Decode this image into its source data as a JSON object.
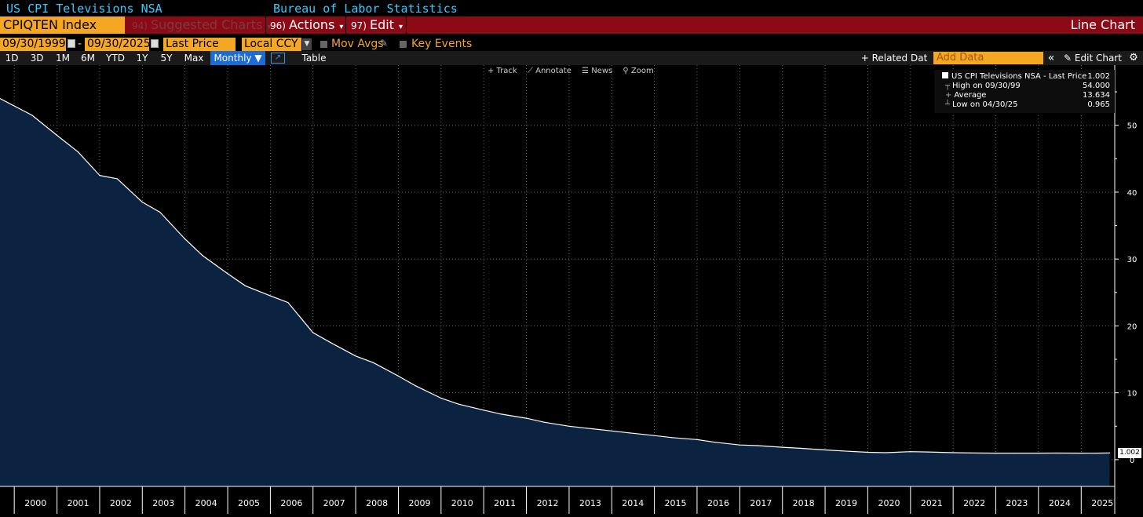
{
  "header": {
    "title": "US CPI Televisions NSA",
    "source": "Bureau of Labor Statistics"
  },
  "toolbar": {
    "ticker": "CPIQTEN Index",
    "suggested_num": "94)",
    "suggested": "Suggested Charts",
    "actions_num": "96)",
    "actions": "Actions",
    "edit_num": "97)",
    "edit": "Edit",
    "chart_type": "Line Chart"
  },
  "options": {
    "start_date": "09/30/1999",
    "dash": "-",
    "end_date": "09/30/2025",
    "price_field": "Last Price",
    "currency": "Local CCY",
    "mov_avgs": "Mov Avgs",
    "key_events": "Key Events"
  },
  "ranges": {
    "items": [
      "1D",
      "3D",
      "1M",
      "6M",
      "YTD",
      "1Y",
      "5Y",
      "Max"
    ],
    "frequency": "Monthly ▼",
    "table": "Table",
    "related": "+ Related Dat",
    "add_data_placeholder": "Add Data",
    "collapse": "«",
    "edit_chart": "✎ Edit Chart",
    "settings": "⚙"
  },
  "chart_tools": {
    "track": "+ Track",
    "annotate": "⟋ Annotate",
    "news": "☰ News",
    "zoom": "⚲ Zoom"
  },
  "legend": {
    "series": "US CPI Televisions NSA - Last Price",
    "series_value": "1.002",
    "high_label": "High on 09/30/99",
    "high_value": "54.000",
    "avg_label": "Average",
    "avg_value": "13.634",
    "low_label": "Low on 04/30/25",
    "low_value": "0.965"
  },
  "last_value_tag": "1.002",
  "colors": {
    "accent": "#f5a623",
    "bar_red": "#8b0a16",
    "title_cyan": "#33ccff",
    "area_fill": "#0b2340",
    "line": "#ffffff",
    "active_blue": "#1c6cd6"
  },
  "chart_data": {
    "type": "area",
    "x": [
      "1999-09",
      "2000-06",
      "2001-01",
      "2001-07",
      "2002-01",
      "2002-06",
      "2003-01",
      "2003-06",
      "2004-01",
      "2004-06",
      "2005-01",
      "2005-06",
      "2006-01",
      "2006-06",
      "2007-01",
      "2007-06",
      "2008-01",
      "2008-06",
      "2009-01",
      "2009-06",
      "2010-01",
      "2010-06",
      "2011-01",
      "2011-06",
      "2012-01",
      "2012-06",
      "2013-01",
      "2013-06",
      "2014-01",
      "2014-06",
      "2015-01",
      "2015-06",
      "2016-01",
      "2016-06",
      "2017-01",
      "2017-06",
      "2018-01",
      "2018-06",
      "2019-01",
      "2019-06",
      "2020-01",
      "2020-06",
      "2021-01",
      "2021-06",
      "2022-01",
      "2022-06",
      "2023-01",
      "2023-06",
      "2024-01",
      "2024-06",
      "2025-01",
      "2025-04",
      "2025-09"
    ],
    "series": [
      {
        "name": "US CPI Televisions NSA - Last Price",
        "values": [
          54.0,
          51.5,
          48.5,
          46.0,
          42.5,
          42.0,
          38.5,
          37.0,
          33.0,
          30.5,
          27.8,
          26.0,
          24.5,
          23.5,
          19.0,
          17.5,
          15.5,
          14.5,
          12.5,
          11.0,
          9.2,
          8.3,
          7.4,
          6.8,
          6.2,
          5.6,
          5.0,
          4.7,
          4.3,
          4.0,
          3.6,
          3.3,
          3.0,
          2.6,
          2.2,
          2.1,
          1.85,
          1.7,
          1.45,
          1.3,
          1.1,
          1.05,
          1.2,
          1.15,
          1.05,
          1.0,
          0.98,
          0.98,
          0.97,
          0.99,
          0.98,
          0.965,
          1.002
        ]
      }
    ],
    "xticks": [
      "2000",
      "2001",
      "2002",
      "2003",
      "2004",
      "2005",
      "2006",
      "2007",
      "2008",
      "2009",
      "2010",
      "2011",
      "2012",
      "2013",
      "2014",
      "2015",
      "2016",
      "2017",
      "2018",
      "2019",
      "2020",
      "2021",
      "2022",
      "2023",
      "2024",
      "2025"
    ],
    "yticks": [
      0,
      10,
      20,
      30,
      40,
      50
    ],
    "ylim": [
      -4,
      59
    ],
    "grid": true,
    "legend_position": "top-right"
  }
}
